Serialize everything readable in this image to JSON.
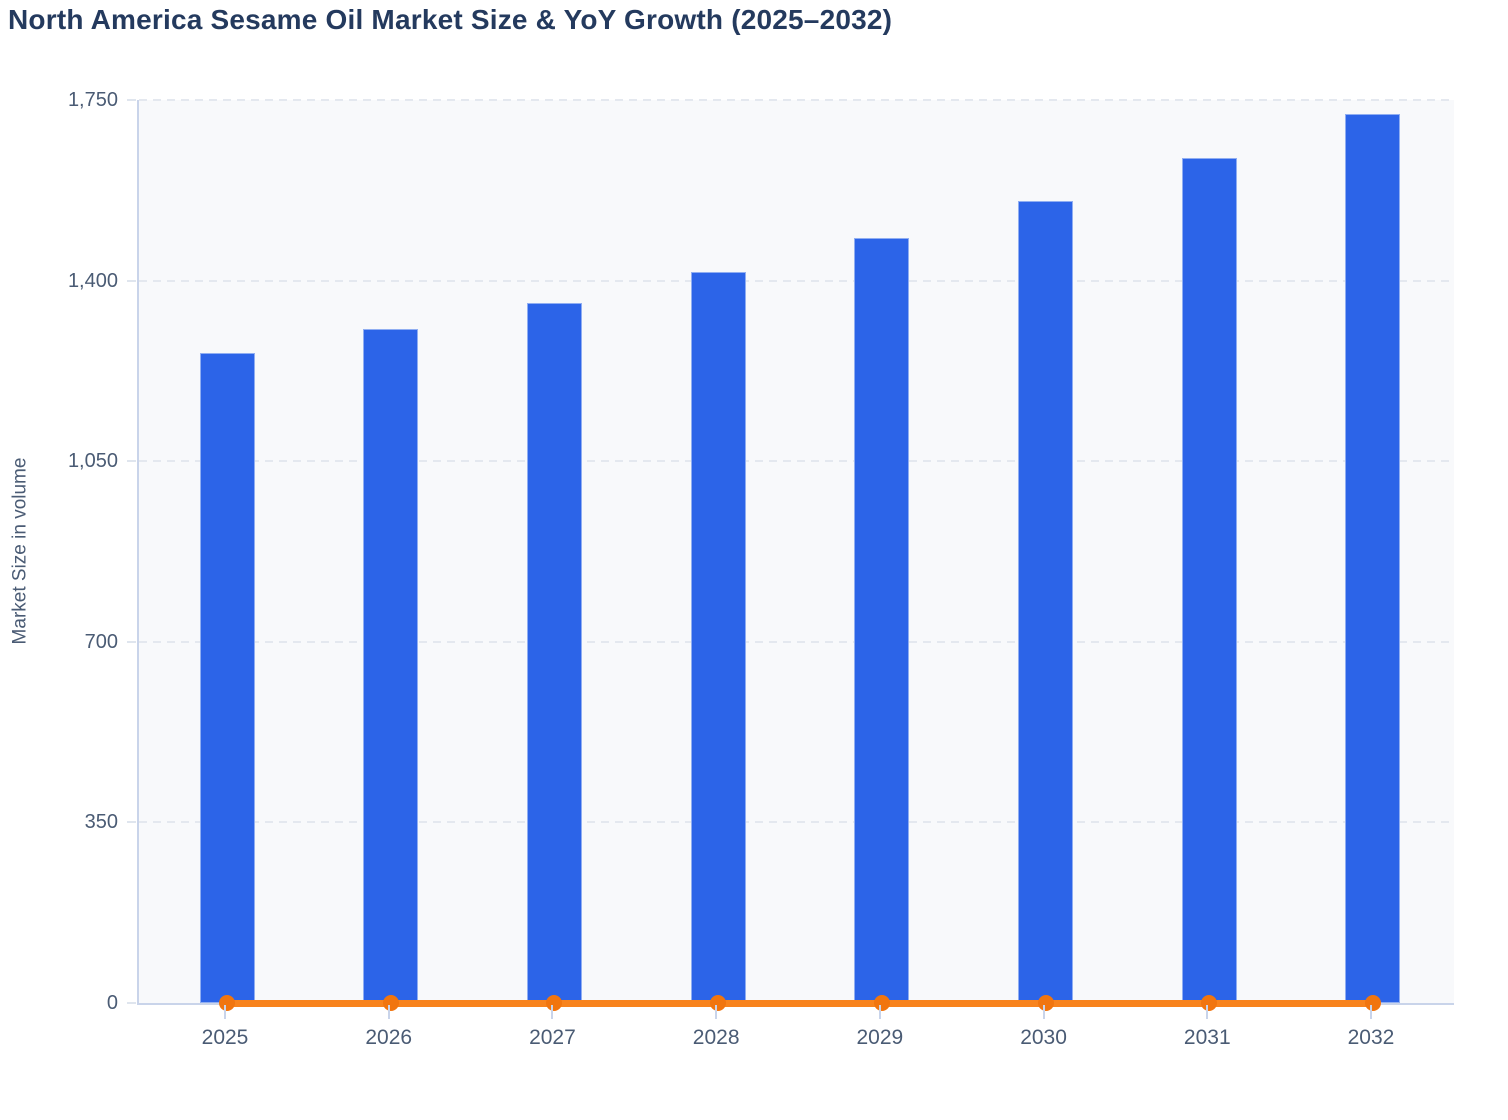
{
  "page": {
    "background_color": "#ffffff"
  },
  "chart_data": {
    "type": "bar",
    "title": "North America Sesame Oil Market Size & YoY Growth (2025–2032)",
    "ylabel": "Market Size in volume",
    "xlabel": "",
    "categories": [
      "2025",
      "2026",
      "2027",
      "2028",
      "2029",
      "2030",
      "2031",
      "2032"
    ],
    "series": [
      {
        "name": "Market Size in volume",
        "type": "bar",
        "color": "#2c64e8",
        "values": [
          1260,
          1307,
          1357,
          1417,
          1483,
          1554,
          1638,
          1723
        ]
      },
      {
        "name": "YoY Growth",
        "type": "line",
        "color": "#f8831d",
        "marker_color": "#f1750f",
        "values": [
          0,
          0,
          0,
          0,
          0,
          0,
          0,
          0
        ]
      }
    ],
    "ylim": [
      0,
      1750
    ],
    "yticks": [
      0,
      350,
      700,
      1050,
      1400,
      1750
    ],
    "ytick_labels": [
      "0",
      "350",
      "700",
      "1,050",
      "1,400",
      "1,750"
    ],
    "grid": "horizontal-dashed",
    "legend_position": "none",
    "plot_background": "#f8f9fb",
    "gridline_color": "#e4e8ef",
    "axis_line_color": "#c9d4ea",
    "tick_label_color": "#4a5b74",
    "title_color": "#243a5e"
  }
}
